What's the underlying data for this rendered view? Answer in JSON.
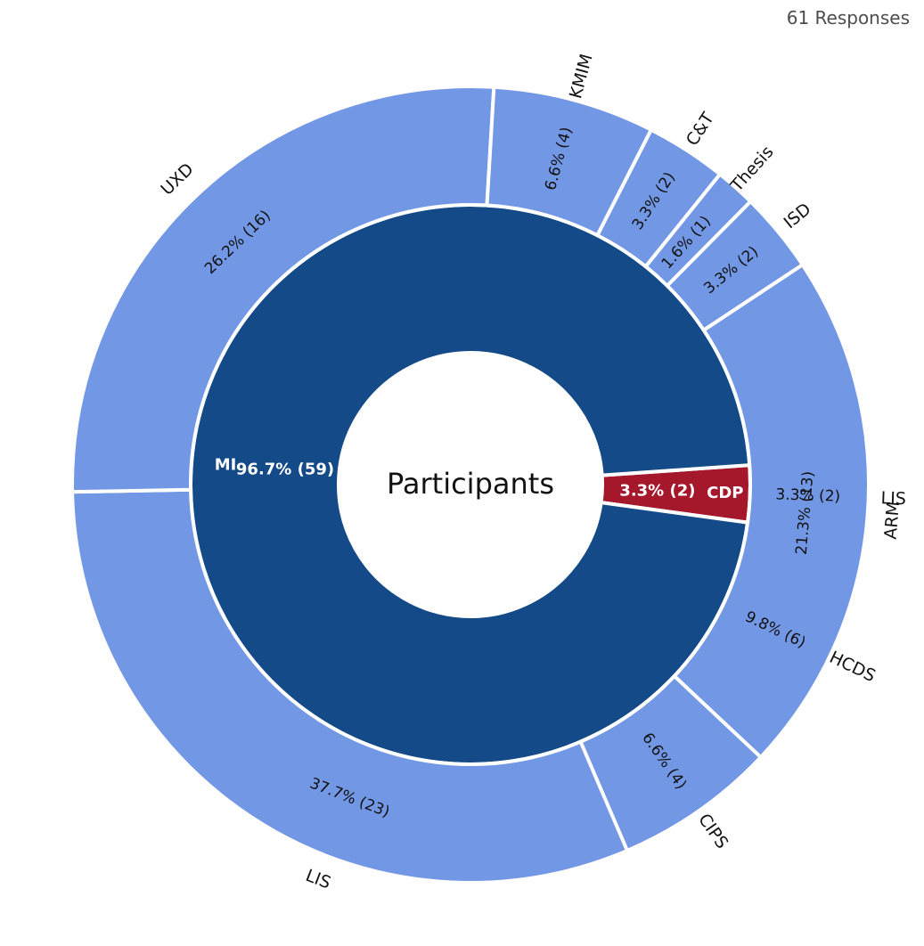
{
  "header": {
    "responses_label": "61 Responses"
  },
  "chart_data": {
    "type": "sunburst",
    "center_label": "Participants",
    "total": 61,
    "inner": [
      {
        "name": "MI",
        "value": 59,
        "percent": "96.7%",
        "label": "96.7% (59)",
        "color": "#134a87"
      },
      {
        "name": "CDP",
        "value": 2,
        "percent": "3.3%",
        "label": "3.3% (2)",
        "color": "#a5182c"
      }
    ],
    "outer": [
      {
        "name": "ARM",
        "parent": "MI",
        "value": 13,
        "label": "21.3% (13)",
        "color": "#7297e4"
      },
      {
        "name": "CIPS",
        "parent": "MI",
        "value": 4,
        "label": "6.6% (4)",
        "color": "#7297e4"
      },
      {
        "name": "HCDS",
        "parent": "MI",
        "value": 6,
        "label": "9.8% (6)",
        "color": "#7297e4"
      },
      {
        "name": "LIS",
        "parent": "MI",
        "value": 23,
        "label": "37.7% (23)",
        "color": "#7297e4"
      },
      {
        "name": "UXD",
        "parent": "MI",
        "value": 16,
        "label": "26.2% (16)",
        "color": "#7297e4"
      },
      {
        "name": "KMIM",
        "parent": "MI",
        "value": 4,
        "label": "6.6% (4)",
        "color": "#7297e4"
      },
      {
        "name": "C&T",
        "parent": "MI",
        "value": 2,
        "label": "3.3% (2)",
        "color": "#7297e4"
      },
      {
        "name": "Thesis",
        "parent": "MI",
        "value": 1,
        "label": "1.6% (1)",
        "color": "#7297e4"
      },
      {
        "name": "ISD",
        "parent": "MI",
        "value": 2,
        "label": "3.3% (2)",
        "color": "#7297e4"
      },
      {
        "name": "LIS",
        "parent": "CDP",
        "value": 2,
        "label": "3.3% (2)",
        "color": "#db7a85"
      }
    ]
  }
}
